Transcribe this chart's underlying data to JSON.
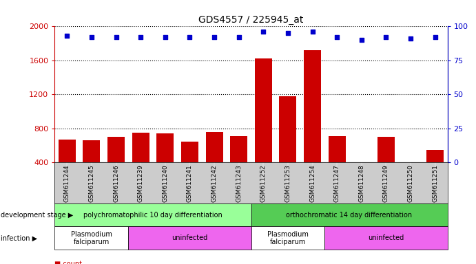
{
  "title": "GDS4557 / 225945_at",
  "samples": [
    "GSM611244",
    "GSM611245",
    "GSM611246",
    "GSM611239",
    "GSM611240",
    "GSM611241",
    "GSM611242",
    "GSM611243",
    "GSM611252",
    "GSM611253",
    "GSM611254",
    "GSM611247",
    "GSM611248",
    "GSM611249",
    "GSM611250",
    "GSM611251"
  ],
  "counts": [
    670,
    660,
    700,
    750,
    740,
    640,
    760,
    710,
    1620,
    1180,
    1720,
    710,
    370,
    700,
    360,
    550
  ],
  "percentiles": [
    93,
    92,
    92,
    92,
    92,
    92,
    92,
    92,
    96,
    95,
    96,
    92,
    90,
    92,
    91,
    92
  ],
  "bar_color": "#cc0000",
  "dot_color": "#0000cc",
  "ylim_left": [
    400,
    2000
  ],
  "ylim_right": [
    0,
    100
  ],
  "yticks_left": [
    400,
    800,
    1200,
    1600,
    2000
  ],
  "yticks_right": [
    0,
    25,
    50,
    75,
    100
  ],
  "grid_values": [
    800,
    1200,
    1600,
    2000
  ],
  "dev_stage_groups": [
    {
      "label": "polychromatophilic 10 day differentiation",
      "start": 0,
      "end": 7,
      "color": "#99ff99"
    },
    {
      "label": "orthochromatic 14 day differentiation",
      "start": 8,
      "end": 15,
      "color": "#55cc55"
    }
  ],
  "infection_groups": [
    {
      "label": "Plasmodium\nfalciparum",
      "start": 0,
      "end": 2,
      "color": "#ffffff"
    },
    {
      "label": "uninfected",
      "start": 3,
      "end": 7,
      "color": "#ee66ee"
    },
    {
      "label": "Plasmodium\nfalciparum",
      "start": 8,
      "end": 10,
      "color": "#ffffff"
    },
    {
      "label": "uninfected",
      "start": 11,
      "end": 15,
      "color": "#ee66ee"
    }
  ],
  "background_color": "#ffffff",
  "xticklabel_bg": "#cccccc",
  "dev_stage_label": "development stage",
  "infection_label": "infection"
}
